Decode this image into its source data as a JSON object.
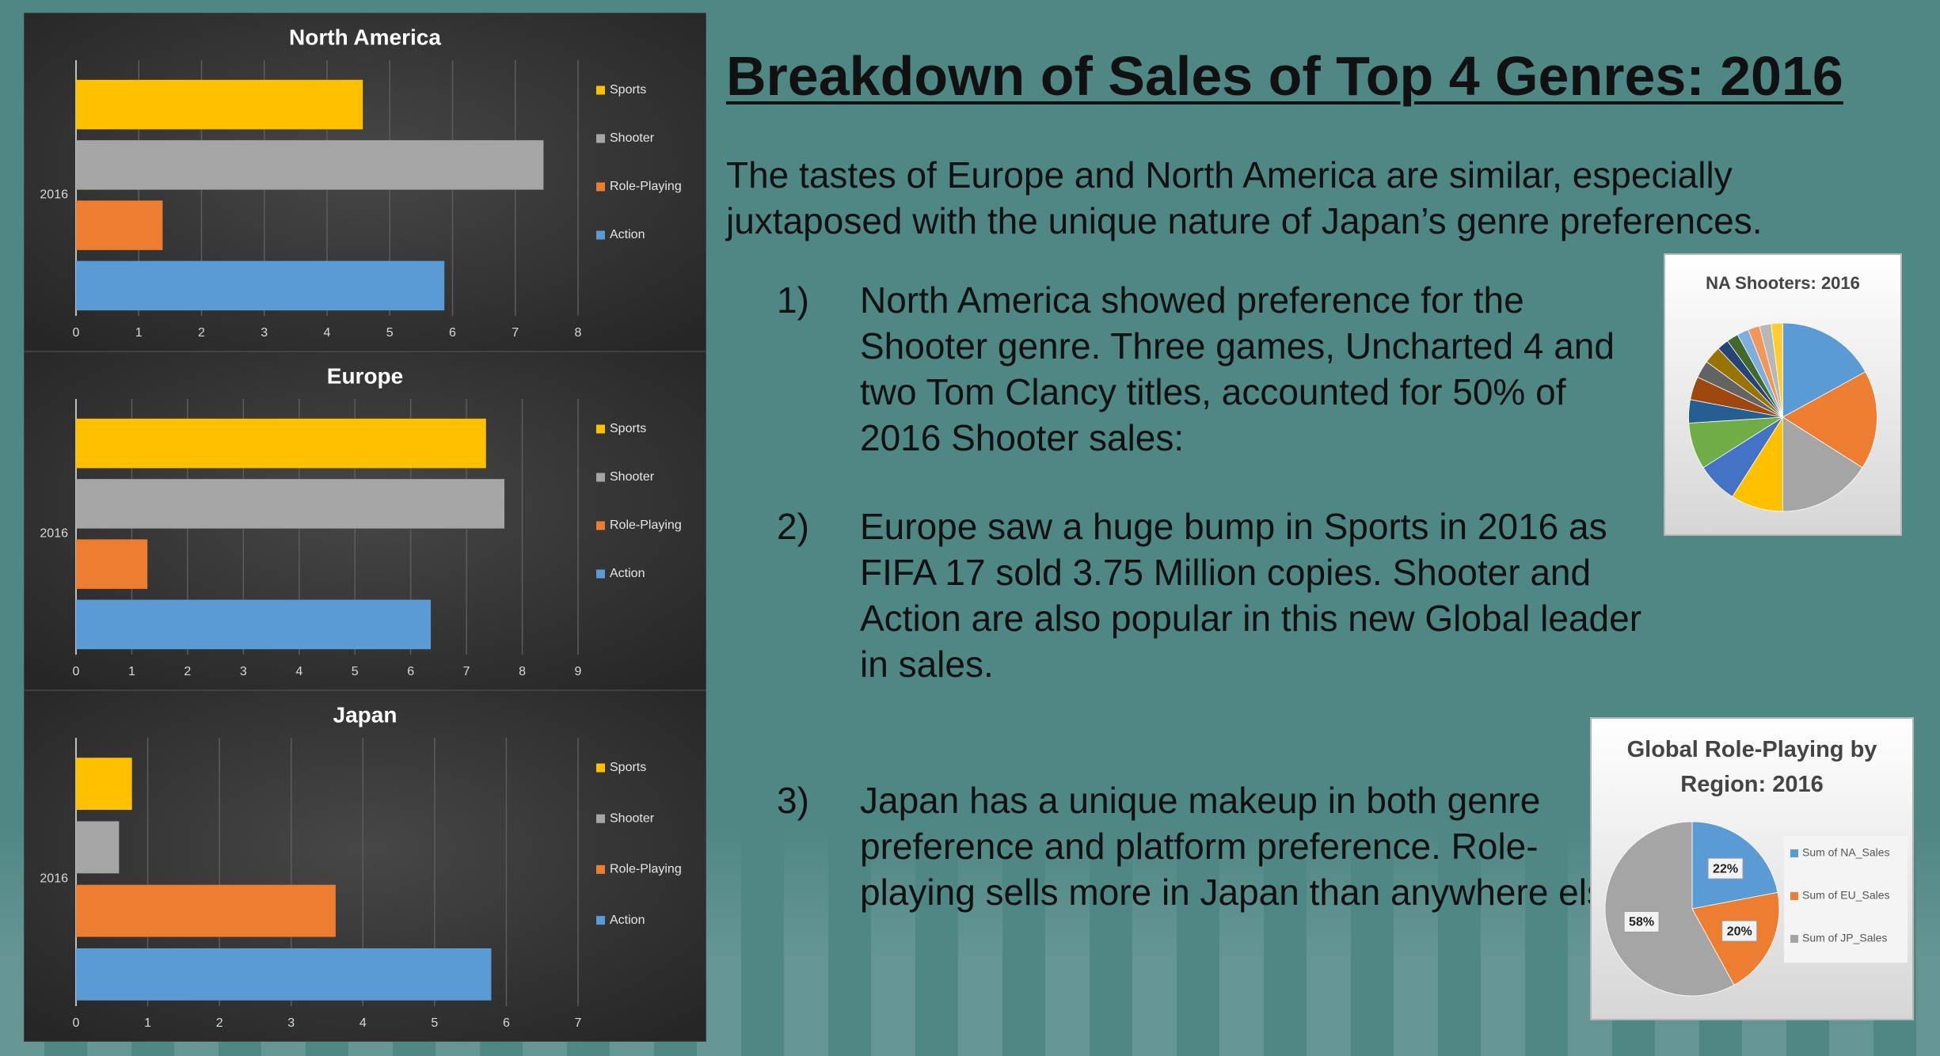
{
  "title": "Breakdown of Sales of Top 4 Genres: 2016",
  "intro": "The tastes of Europe and North America are similar, especially juxtaposed with the unique nature of Japan’s genre preferences.",
  "points": [
    {
      "number": "1)",
      "text": "North America showed preference for the Shooter genre. Three games, Uncharted 4 and two Tom Clancy titles, accounted for 50% of 2016 Shooter sales:"
    },
    {
      "number": "2)",
      "text": "Europe saw a huge bump in Sports in 2016 as FIFA 17 sold 3.75 Million copies. Shooter and Action are also popular in this new Global leader in sales."
    },
    {
      "number": "3)",
      "text": "Japan has a unique makeup in both genre preference and platform preference. Role-playing sells more in Japan than anywhere else."
    }
  ],
  "chart_data": [
    {
      "type": "bar",
      "orientation": "horizontal",
      "title": "North America",
      "categories": [
        "2016"
      ],
      "series": [
        {
          "name": "Sports",
          "color": "#ffc000",
          "values": [
            4.57
          ]
        },
        {
          "name": "Shooter",
          "color": "#a5a5a5",
          "values": [
            7.45
          ]
        },
        {
          "name": "Role-Playing",
          "color": "#ed7d31",
          "values": [
            1.38
          ]
        },
        {
          "name": "Action",
          "color": "#5b9bd5",
          "values": [
            5.87
          ]
        }
      ],
      "xlim": [
        0,
        8
      ],
      "xticks": [
        0,
        1,
        2,
        3,
        4,
        5,
        6,
        7,
        8
      ],
      "grid": true,
      "legend": "right"
    },
    {
      "type": "bar",
      "orientation": "horizontal",
      "title": "Europe",
      "categories": [
        "2016"
      ],
      "series": [
        {
          "name": "Sports",
          "color": "#ffc000",
          "values": [
            7.35
          ]
        },
        {
          "name": "Shooter",
          "color": "#a5a5a5",
          "values": [
            7.68
          ]
        },
        {
          "name": "Role-Playing",
          "color": "#ed7d31",
          "values": [
            1.28
          ]
        },
        {
          "name": "Action",
          "color": "#5b9bd5",
          "values": [
            6.36
          ]
        }
      ],
      "xlim": [
        0,
        9
      ],
      "xticks": [
        0,
        1,
        2,
        3,
        4,
        5,
        6,
        7,
        8,
        9
      ],
      "grid": true,
      "legend": "right"
    },
    {
      "type": "bar",
      "orientation": "horizontal",
      "title": "Japan",
      "categories": [
        "2016"
      ],
      "series": [
        {
          "name": "Sports",
          "color": "#ffc000",
          "values": [
            0.78
          ]
        },
        {
          "name": "Shooter",
          "color": "#a5a5a5",
          "values": [
            0.6
          ]
        },
        {
          "name": "Role-Playing",
          "color": "#ed7d31",
          "values": [
            3.62
          ]
        },
        {
          "name": "Action",
          "color": "#5b9bd5",
          "values": [
            5.79
          ]
        }
      ],
      "xlim": [
        0,
        7
      ],
      "xticks": [
        0,
        1,
        2,
        3,
        4,
        5,
        6,
        7
      ],
      "grid": true,
      "legend": "right"
    },
    {
      "type": "pie",
      "title": "NA Shooters: 2016",
      "categories": [
        null,
        null,
        null,
        null,
        null,
        null,
        null,
        null,
        null,
        null,
        null,
        null,
        null,
        null,
        null,
        null
      ],
      "values": [
        17,
        17,
        16,
        9,
        7,
        8,
        4,
        4,
        3,
        3,
        2,
        2,
        2,
        2,
        2,
        2
      ],
      "colors": [
        "#5b9bd5",
        "#ed7d31",
        "#a5a5a5",
        "#ffc000",
        "#4472c4",
        "#70ad47",
        "#255e91",
        "#9e480e",
        "#636363",
        "#997300",
        "#264478",
        "#43682b",
        "#7cafdd",
        "#f1975a",
        "#b7b7b7",
        "#ffcd33"
      ]
    },
    {
      "type": "pie",
      "title": "Global Role-Playing by Region: 2016",
      "categories": [
        "Sum of NA_Sales",
        "Sum of EU_Sales",
        "Sum of JP_Sales"
      ],
      "values": [
        22,
        20,
        58
      ],
      "value_labels": [
        "22%",
        "20%",
        "58%"
      ],
      "colors": [
        "#5b9bd5",
        "#ed7d31",
        "#a5a5a5"
      ],
      "legend": "right"
    }
  ]
}
